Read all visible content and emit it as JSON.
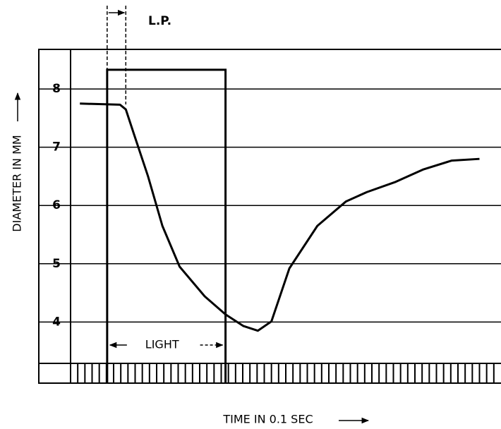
{
  "chart_data": {
    "type": "line",
    "xlabel": "TIME IN 0.1 SEC",
    "ylabel": "DIAMETER IN MM",
    "x": [
      1.3,
      6.9,
      7.7,
      8.85,
      10.8,
      12.8,
      15.2,
      18.7,
      21.6,
      24.1,
      26.1,
      28,
      30.5,
      34.4,
      38.4,
      41.3,
      45.2,
      49.2,
      53.1,
      57
    ],
    "series": [
      {
        "color": "#000000",
        "values": [
          7.75,
          7.73,
          7.65,
          7.22,
          6.5,
          5.65,
          4.95,
          4.44,
          4.13,
          3.93,
          3.85,
          4.01,
          4.92,
          5.65,
          6.07,
          6.23,
          6.4,
          6.62,
          6.77,
          6.8
        ]
      }
    ],
    "xlim": [
      0,
      60
    ],
    "xticks": [
      0,
      1,
      2,
      3,
      4,
      5,
      6,
      7,
      8,
      9,
      10,
      11,
      12,
      13,
      14,
      15,
      16,
      17,
      18,
      19,
      20,
      21,
      22,
      23,
      24,
      25,
      26,
      27,
      28,
      29,
      30,
      31,
      32,
      33,
      34,
      35,
      36,
      37,
      38,
      39,
      40,
      41,
      42,
      43,
      44,
      45,
      46,
      47,
      48,
      49,
      50,
      51,
      52,
      53,
      54,
      55,
      56,
      57,
      58,
      59
    ],
    "ylim": [
      2.95,
      8.68
    ],
    "yticks": [
      4,
      5,
      6,
      7,
      8
    ],
    "grid": true,
    "light": {
      "label": "LIGHT",
      "start": 5.1,
      "end": 21.6,
      "level": 8.33
    },
    "latent_period": {
      "label": "L.P.",
      "start": 5.1,
      "end": 7.7
    }
  }
}
